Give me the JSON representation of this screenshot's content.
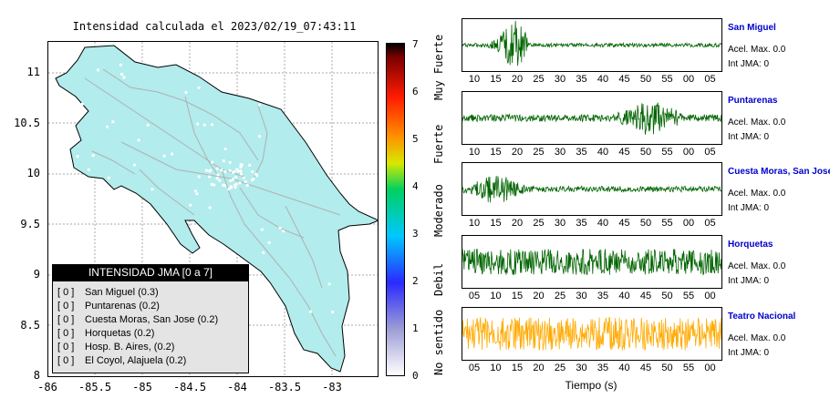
{
  "map": {
    "title": "Intensidad calculada el 2023/02/19_07:43:11",
    "y_ticks": [
      "11",
      "10.5",
      "10",
      "9.5",
      "9",
      "8.5",
      "8"
    ],
    "x_ticks": [
      "-86",
      "-85.5",
      "-85",
      "-84.5",
      "-84",
      "-83.5",
      "-83"
    ],
    "land_color": "#b2ecec",
    "road_color": "#b0b0b0"
  },
  "legend": {
    "title": "INTENSIDAD JMA [0 a 7]",
    "rows": [
      {
        "code": "[ 0 ]",
        "label": "San Miguel (0.3)"
      },
      {
        "code": "[ 0 ]",
        "label": "Puntarenas (0.2)"
      },
      {
        "code": "[ 0 ]",
        "label": "Cuesta Moras, San Jose (0.2)"
      },
      {
        "code": "[ 0 ]",
        "label": "Horquetas (0.2)"
      },
      {
        "code": "[ 0 ]",
        "label": "Hosp. B. Aires, (0.2)"
      },
      {
        "code": "[ 0 ]",
        "label": "El Coyol, Alajuela (0.2)"
      }
    ]
  },
  "colorbar": {
    "numbers": [
      "7",
      "6",
      "5",
      "4",
      "3",
      "2",
      "1",
      "0"
    ],
    "words": [
      "Muy Fuerte",
      "Fuerte",
      "Moderado",
      "Debil",
      "No sentido"
    ]
  },
  "traces": [
    {
      "name": "San Miguel",
      "acel": "Acel. Max. 0.0",
      "int": "Int JMA: 0",
      "color": "#006400",
      "ticks": [
        "10",
        "15",
        "20",
        "25",
        "30",
        "35",
        "40",
        "45",
        "50",
        "55",
        "00",
        "05"
      ]
    },
    {
      "name": "Puntarenas",
      "acel": "Acel. Max. 0.0",
      "int": "Int JMA: 0",
      "color": "#006400",
      "ticks": [
        "10",
        "15",
        "20",
        "25",
        "30",
        "35",
        "40",
        "45",
        "50",
        "55",
        "00",
        "05"
      ]
    },
    {
      "name": "Cuesta Moras, San Jose",
      "acel": "Acel. Max. 0.0",
      "int": "Int JMA: 0",
      "color": "#006400",
      "ticks": [
        "10",
        "15",
        "20",
        "25",
        "30",
        "35",
        "40",
        "45",
        "50",
        "55",
        "00",
        "05"
      ]
    },
    {
      "name": "Horquetas",
      "acel": "Acel. Max. 0.0",
      "int": "Int JMA: 0",
      "color": "#006400",
      "ticks": [
        "05",
        "10",
        "15",
        "20",
        "25",
        "30",
        "35",
        "40",
        "45",
        "50",
        "55",
        "00"
      ]
    },
    {
      "name": "Teatro Nacional",
      "acel": "Acel. Max. 0.0",
      "int": "Int JMA: 0",
      "color": "#ffaa00",
      "ticks": [
        "05",
        "10",
        "15",
        "20",
        "25",
        "30",
        "35",
        "40",
        "45",
        "50",
        "55",
        "00"
      ]
    }
  ],
  "xlabel": "Tiempo (s)"
}
